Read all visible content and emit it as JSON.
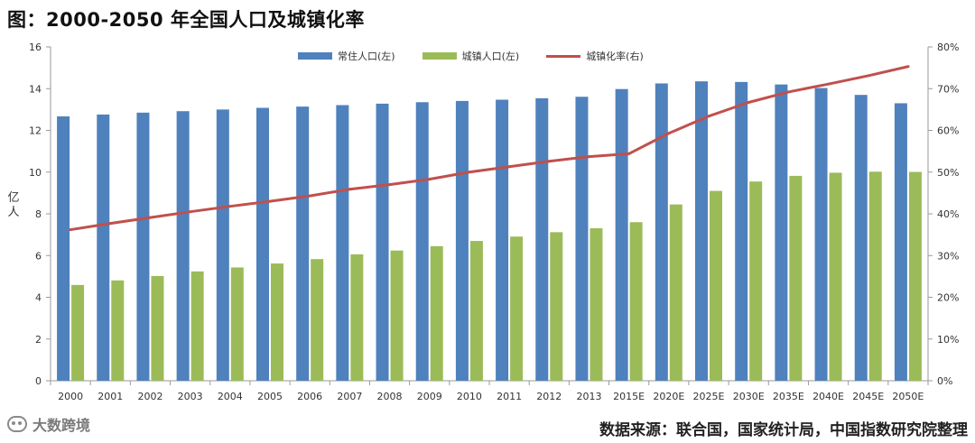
{
  "title": "图：2000-2050 年全国人口及城镇化率",
  "source": "数据来源：联合国，国家统计局，中国指数研究院整理",
  "watermark": "大数跨境",
  "colors": {
    "resident": "#4f81bd",
    "urban": "#9bbb59",
    "rate": "#c0504d",
    "axis": "#9a9a9a",
    "text": "#333333"
  },
  "chart_data": {
    "type": "bar",
    "title": "2000-2050 年全国人口及城镇化率",
    "ylabel": "亿人",
    "ylim": [
      0,
      16
    ],
    "yticks": [
      0,
      2,
      4,
      6,
      8,
      10,
      12,
      14,
      16
    ],
    "y2lim": [
      0,
      80
    ],
    "y2ticks": [
      "0%",
      "10%",
      "20%",
      "30%",
      "40%",
      "50%",
      "60%",
      "70%",
      "80%"
    ],
    "grid": false,
    "legend_position": "top",
    "categories": [
      "2000",
      "2001",
      "2002",
      "2003",
      "2004",
      "2005",
      "2006",
      "2007",
      "2008",
      "2009",
      "2010",
      "2011",
      "2012",
      "2013",
      "2015E",
      "2020E",
      "2025E",
      "2030E",
      "2035E",
      "2040E",
      "2045E",
      "2050E"
    ],
    "series": [
      {
        "name": "常住人口(左)",
        "type": "bar",
        "axis": "left",
        "values": [
          12.67,
          12.76,
          12.85,
          12.92,
          13.0,
          13.08,
          13.14,
          13.21,
          13.28,
          13.35,
          13.41,
          13.47,
          13.54,
          13.61,
          13.98,
          14.25,
          14.35,
          14.32,
          14.2,
          14.03,
          13.7,
          13.3
        ]
      },
      {
        "name": "城镇人口(左)",
        "type": "bar",
        "axis": "left",
        "values": [
          4.59,
          4.81,
          5.02,
          5.24,
          5.43,
          5.62,
          5.83,
          6.06,
          6.24,
          6.45,
          6.7,
          6.91,
          7.12,
          7.31,
          7.6,
          8.45,
          9.1,
          9.55,
          9.82,
          9.97,
          10.02,
          10.01
        ]
      },
      {
        "name": "城镇化率(右)",
        "type": "line",
        "axis": "right",
        "values": [
          36.2,
          37.7,
          39.1,
          40.5,
          41.8,
          43.0,
          44.3,
          45.9,
          47.0,
          48.3,
          50.0,
          51.3,
          52.6,
          53.7,
          54.4,
          59.3,
          63.4,
          66.7,
          69.2,
          71.1,
          73.1,
          75.3
        ]
      }
    ]
  }
}
